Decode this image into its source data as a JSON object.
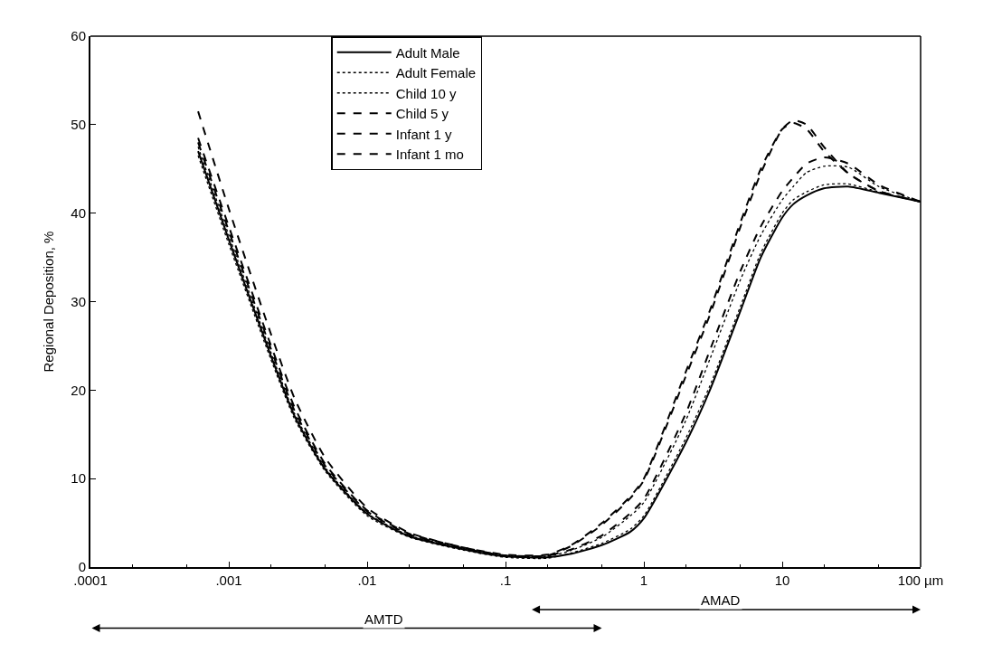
{
  "chart_data": {
    "type": "line",
    "ylabel": "Regional Deposition, %",
    "x": [
      0.0006,
      0.001,
      0.002,
      0.003,
      0.005,
      0.01,
      0.02,
      0.05,
      0.1,
      0.2,
      0.3,
      0.5,
      0.8,
      1,
      2,
      3,
      5,
      7,
      10,
      12,
      15,
      20,
      30,
      50,
      100
    ],
    "series": [
      {
        "name": "Adult Male",
        "color": "#000000",
        "line_style": "solid",
        "values": [
          47,
          37,
          24,
          17,
          11,
          6,
          3.5,
          2,
          1.2,
          1.1,
          1.5,
          2.5,
          4,
          5.5,
          14,
          20,
          29,
          35,
          39.5,
          41,
          42,
          42.8,
          43,
          42.3,
          41.3
        ]
      },
      {
        "name": "Adult Female",
        "color": "#000000",
        "line_style": "dotted",
        "values": [
          46.5,
          36.5,
          23.6,
          16.7,
          10.8,
          5.8,
          3.4,
          1.9,
          1.1,
          1.0,
          1.6,
          2.7,
          4.3,
          5.8,
          14.5,
          20.5,
          29.5,
          35.5,
          40,
          41.5,
          42.4,
          43.2,
          43.3,
          42.4,
          41.3
        ]
      },
      {
        "name": "Child 10 y",
        "color": "#000000",
        "line_style": "dotted",
        "values": [
          47.5,
          37.5,
          24.4,
          17.3,
          11.2,
          6.1,
          3.6,
          2.1,
          1.3,
          1.2,
          1.9,
          3.4,
          5.8,
          7.3,
          16.5,
          23.5,
          32.5,
          37.5,
          41.5,
          43,
          44.6,
          45.3,
          45.2,
          43,
          41.3
        ]
      },
      {
        "name": "Child 5 y",
        "color": "#000000",
        "line_style": "dashed",
        "values": [
          48,
          38,
          24.8,
          17.6,
          11.4,
          6.3,
          3.7,
          2.1,
          1.3,
          1.3,
          2,
          3.6,
          6.1,
          7.7,
          17.3,
          24.5,
          33.5,
          38.5,
          42.5,
          44,
          45.6,
          46.3,
          45.6,
          43.2,
          41.3
        ]
      },
      {
        "name": "Infant 1 y",
        "color": "#000000",
        "line_style": "dashed",
        "values": [
          48.5,
          38.5,
          25.2,
          18,
          11.6,
          6.4,
          3.8,
          2.2,
          1.3,
          1.3,
          2.4,
          4.8,
          7.8,
          9.8,
          21.5,
          28.5,
          38.5,
          44.5,
          49.5,
          50.5,
          50,
          47.5,
          44.5,
          42.5,
          41.3
        ]
      },
      {
        "name": "Infant 1 mo",
        "color": "#000000",
        "line_style": "dashed",
        "values": [
          51.5,
          40.5,
          26.5,
          19,
          12.3,
          6.7,
          3.9,
          2.2,
          1.4,
          1.4,
          2.5,
          5,
          8,
          10,
          22,
          29,
          39,
          45,
          49.5,
          50.2,
          49.5,
          47,
          44.5,
          42.5,
          41.3
        ]
      }
    ],
    "xlim": [
      0.0001,
      100
    ],
    "log": "x",
    "xticks": [
      {
        "value": 0.0001,
        "label": ".0001"
      },
      {
        "value": 0.001,
        "label": ".001"
      },
      {
        "value": 0.01,
        "label": ".01"
      },
      {
        "value": 0.1,
        "label": ".1"
      },
      1,
      10,
      {
        "value": 100,
        "label": "100 µm"
      }
    ],
    "ylim": [
      0,
      60
    ],
    "yticks": [
      0,
      10,
      20,
      30,
      40,
      50,
      60
    ],
    "legend": "top",
    "marker": "none",
    "annotations": [
      "AMTD",
      "AMAD"
    ]
  }
}
